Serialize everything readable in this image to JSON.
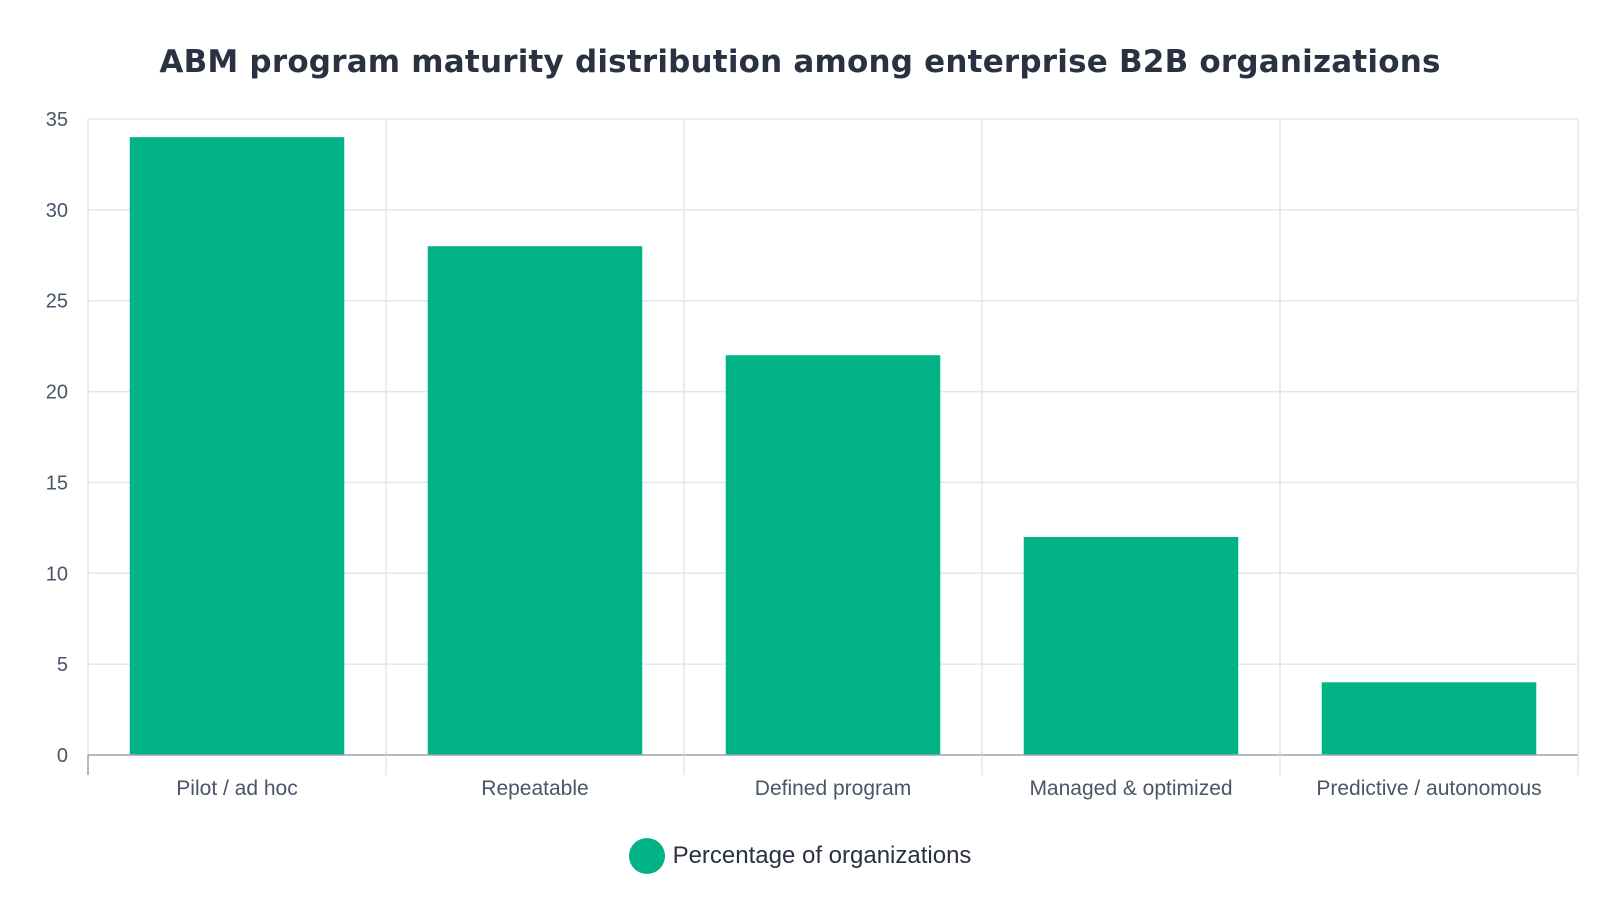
{
  "colors": {
    "bar": "#02b388",
    "grid": "#e2e6ee",
    "axis": "#9aa3b0",
    "text": "#4a5568",
    "title": "#2a3140"
  },
  "chart_data": {
    "type": "bar",
    "title": "ABM program maturity distribution among enterprise B2B organizations",
    "xlabel": "",
    "ylabel": "",
    "categories": [
      "Pilot / ad hoc",
      "Repeatable",
      "Defined program",
      "Managed & optimized",
      "Predictive / autonomous"
    ],
    "series": [
      {
        "name": "Percentage of organizations",
        "values": [
          34,
          28,
          22,
          12,
          4
        ]
      }
    ],
    "ylim": [
      0,
      35
    ],
    "yticks": [
      0,
      5,
      10,
      15,
      20,
      25,
      30,
      35
    ],
    "grid": true,
    "legend": "bottom-center"
  }
}
